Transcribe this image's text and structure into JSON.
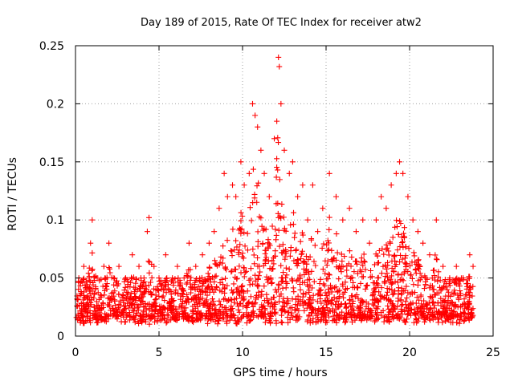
{
  "chart_data": {
    "type": "scatter",
    "title": "Day 189 of 2015, Rate Of TEC Index for receiver atw2",
    "xlabel": "GPS time / hours",
    "ylabel": "ROTI / TECUs",
    "xlim": [
      0,
      25
    ],
    "ylim": [
      0,
      0.25
    ],
    "xticks": [
      "0",
      "5",
      "10",
      "15",
      "20",
      "25"
    ],
    "yticks": [
      "0",
      "0.05",
      "0.1",
      "0.15",
      "0.2",
      "0.25"
    ],
    "grid": true,
    "marker": "plus",
    "color": "#ff0000",
    "series": [
      {
        "x": [
          0.2,
          0.5,
          0.9,
          1.0,
          1.3,
          1.7,
          2.0,
          2.3,
          2.6,
          3.0,
          3.4,
          3.8,
          4.1,
          4.3,
          4.4,
          4.7,
          5.0,
          5.4,
          5.8,
          6.1,
          6.5,
          6.8,
          7.2,
          7.6,
          8.0,
          8.3,
          8.6,
          8.9,
          9.1,
          9.4,
          9.6,
          9.9,
          10.1,
          10.4,
          10.6,
          10.75,
          10.9,
          11.1,
          11.3,
          11.6,
          11.9,
          12.05,
          12.15,
          12.2,
          12.3,
          12.5,
          12.8,
          13.0,
          13.3,
          13.6,
          13.9,
          14.2,
          14.5,
          14.8,
          15.2,
          15.6,
          16.0,
          16.4,
          16.8,
          17.2,
          17.6,
          18.0,
          18.3,
          18.6,
          18.9,
          19.2,
          19.4,
          19.6,
          19.9,
          20.2,
          20.5,
          20.8,
          21.2,
          21.6,
          22.0,
          22.4,
          22.8,
          23.2,
          23.6,
          23.8
        ],
        "y": [
          0.05,
          0.06,
          0.08,
          0.1,
          0.05,
          0.06,
          0.08,
          0.05,
          0.06,
          0.05,
          0.07,
          0.06,
          0.05,
          0.09,
          0.102,
          0.06,
          0.05,
          0.07,
          0.05,
          0.06,
          0.05,
          0.08,
          0.06,
          0.07,
          0.08,
          0.09,
          0.11,
          0.14,
          0.12,
          0.13,
          0.12,
          0.15,
          0.13,
          0.14,
          0.2,
          0.19,
          0.18,
          0.16,
          0.14,
          0.12,
          0.17,
          0.185,
          0.24,
          0.232,
          0.2,
          0.16,
          0.14,
          0.15,
          0.12,
          0.13,
          0.1,
          0.13,
          0.09,
          0.11,
          0.14,
          0.12,
          0.1,
          0.11,
          0.09,
          0.1,
          0.08,
          0.1,
          0.12,
          0.11,
          0.13,
          0.14,
          0.15,
          0.14,
          0.12,
          0.1,
          0.09,
          0.08,
          0.07,
          0.1,
          0.06,
          0.05,
          0.06,
          0.05,
          0.07,
          0.06
        ]
      }
    ]
  }
}
